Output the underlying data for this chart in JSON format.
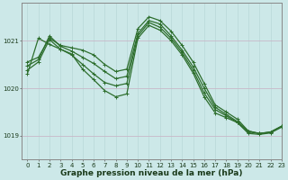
{
  "title": "Graphe pression niveau de la mer (hPa)",
  "bg_color": "#cce8e8",
  "line_color": "#2d6e2d",
  "grid_color_h": "#c8b8c8",
  "grid_color_v": "#b8d8d8",
  "xlim": [
    -0.5,
    23
  ],
  "ylim": [
    1018.5,
    1021.8
  ],
  "yticks": [
    1019,
    1020,
    1021
  ],
  "xticks": [
    0,
    1,
    2,
    3,
    4,
    5,
    6,
    7,
    8,
    9,
    10,
    11,
    12,
    13,
    14,
    15,
    16,
    17,
    18,
    19,
    20,
    21,
    22,
    23
  ],
  "lines": [
    {
      "y": [
        1020.55,
        1020.65,
        1021.05,
        1020.9,
        1020.85,
        1020.8,
        1020.7,
        1020.5,
        1020.35,
        1020.4,
        1021.25,
        1021.5,
        1021.42,
        1021.2,
        1020.9,
        1020.55,
        1020.1,
        1019.65,
        1019.5,
        1019.35,
        1019.1,
        1019.05,
        1019.08,
        1019.2
      ]
    },
    {
      "y": [
        1020.47,
        1020.6,
        1021.1,
        1020.88,
        1020.78,
        1020.65,
        1020.52,
        1020.35,
        1020.2,
        1020.25,
        1021.15,
        1021.42,
        1021.35,
        1021.1,
        1020.8,
        1020.45,
        1020.0,
        1019.6,
        1019.45,
        1019.3,
        1019.1,
        1019.05,
        1019.08,
        1019.2
      ]
    },
    {
      "y": [
        1020.38,
        1020.55,
        1021.02,
        1020.82,
        1020.7,
        1020.5,
        1020.3,
        1020.12,
        1020.05,
        1020.1,
        1021.1,
        1021.38,
        1021.28,
        1021.05,
        1020.75,
        1020.38,
        1019.9,
        1019.55,
        1019.42,
        1019.28,
        1019.08,
        1019.05,
        1019.07,
        1019.2
      ]
    },
    {
      "y": [
        1020.3,
        1021.05,
        1020.92,
        1020.82,
        1020.72,
        1020.4,
        1020.18,
        1019.95,
        1019.82,
        1019.88,
        1021.05,
        1021.32,
        1021.22,
        1021.0,
        1020.7,
        1020.32,
        1019.82,
        1019.48,
        1019.38,
        1019.28,
        1019.05,
        1019.03,
        1019.06,
        1019.18
      ]
    }
  ],
  "marker": "+",
  "marker_size": 3.5,
  "linewidth": 0.9,
  "title_fontsize": 6.5,
  "tick_fontsize": 5,
  "axis_bg": "#cce8e8",
  "fig_bg": "#cce8e8"
}
